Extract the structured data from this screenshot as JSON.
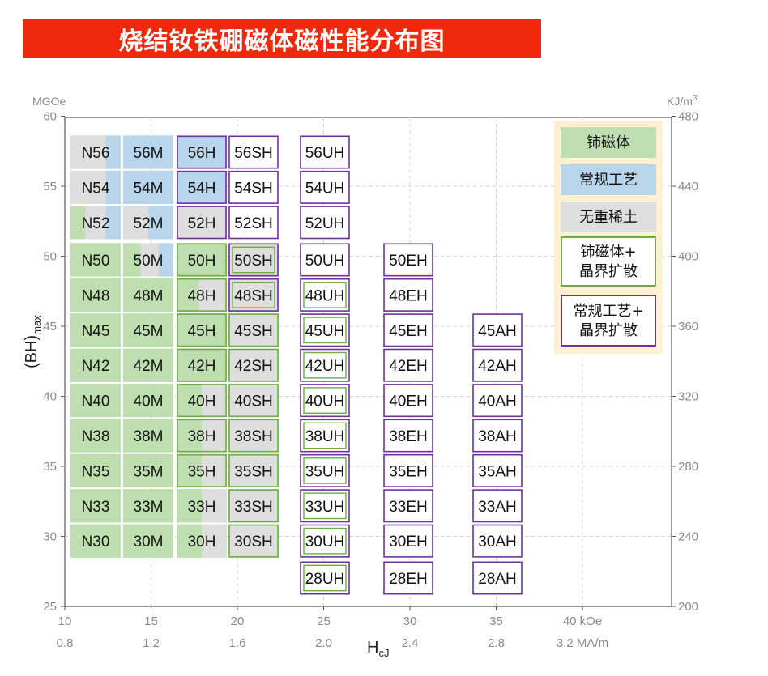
{
  "title": "烧结钕铁硼磁体磁性能分布图",
  "chart_data": {
    "type": "table",
    "xlabel_main": "H",
    "xlabel_sub": "cJ",
    "ylabel_main": "(BH)",
    "ylabel_sub": "max",
    "y_left_unit": "MGOe",
    "y_right_unit_base": "KJ/m",
    "y_right_unit_sup": "3",
    "ylim": [
      25,
      60
    ],
    "y_ticks_left": [
      25,
      30,
      35,
      40,
      45,
      50,
      55,
      60
    ],
    "y_ticks_right": [
      {
        "value": 25,
        "label": "200"
      },
      {
        "value": 30,
        "label": "240"
      },
      {
        "value": 35,
        "label": "280"
      },
      {
        "value": 40,
        "label": "320"
      },
      {
        "value": 45,
        "label": "360"
      },
      {
        "value": 50,
        "label": "400"
      },
      {
        "value": 55,
        "label": "440"
      },
      {
        "value": 60,
        "label": "480"
      }
    ],
    "xlim": [
      10,
      45
    ],
    "x_ticks_koe": [
      {
        "value": 10,
        "label": "10"
      },
      {
        "value": 15,
        "label": "15"
      },
      {
        "value": 20,
        "label": "20"
      },
      {
        "value": 25,
        "label": "25"
      },
      {
        "value": 30,
        "label": "30"
      },
      {
        "value": 35,
        "label": "35"
      },
      {
        "value": 40,
        "label": "40 kOe"
      }
    ],
    "x_ticks_ma": [
      {
        "value": 10,
        "label": "0.8"
      },
      {
        "value": 15,
        "label": "1.2"
      },
      {
        "value": 20,
        "label": "1.6"
      },
      {
        "value": 25,
        "label": "2.0"
      },
      {
        "value": 30,
        "label": "2.4"
      },
      {
        "value": 35,
        "label": "2.8"
      },
      {
        "value": 40,
        "label": "3.2 MA/m"
      }
    ],
    "grid": true,
    "legend_position": "top-right",
    "colors": {
      "green": "#bedeb0",
      "blue": "#b8d5ec",
      "gray": "#dedede",
      "green_border": "#6fac46",
      "purple_border": "#7030a0",
      "legend_bg": "#fdf1d2",
      "grid": "#d0d0d0"
    },
    "legend": [
      {
        "label": "铈磁体",
        "style": "green"
      },
      {
        "label": "常规工艺",
        "style": "blue"
      },
      {
        "label": "无重稀土",
        "style": "gray"
      },
      {
        "label": "铈磁体+\n晶界扩散",
        "style": "green-border"
      },
      {
        "label": "常规工艺+\n晶界扩散",
        "style": "purple-border"
      }
    ],
    "columns": [
      {
        "hcj": 12,
        "grades": [
          {
            "label": "N56",
            "bh": 56,
            "fill": [
              [
                "gray",
                0.7
              ],
              [
                "blue",
                0.3
              ]
            ]
          },
          {
            "label": "N54",
            "bh": 54,
            "fill": [
              [
                "gray",
                0.7
              ],
              [
                "blue",
                0.3
              ]
            ]
          },
          {
            "label": "N52",
            "bh": 52,
            "fill": [
              [
                "green",
                0.3
              ],
              [
                "gray",
                0.4
              ],
              [
                "blue",
                0.3
              ]
            ]
          },
          {
            "label": "N50",
            "bh": 50,
            "fill": [
              [
                "green",
                1
              ]
            ]
          },
          {
            "label": "N48",
            "bh": 48,
            "fill": [
              [
                "green",
                1
              ]
            ]
          },
          {
            "label": "N45",
            "bh": 45,
            "fill": [
              [
                "green",
                1
              ]
            ]
          },
          {
            "label": "N42",
            "bh": 42,
            "fill": [
              [
                "green",
                1
              ]
            ]
          },
          {
            "label": "N40",
            "bh": 40,
            "fill": [
              [
                "green",
                1
              ]
            ]
          },
          {
            "label": "N38",
            "bh": 38,
            "fill": [
              [
                "green",
                1
              ]
            ]
          },
          {
            "label": "N35",
            "bh": 35,
            "fill": [
              [
                "green",
                1
              ]
            ]
          },
          {
            "label": "N33",
            "bh": 33,
            "fill": [
              [
                "green",
                1
              ]
            ]
          },
          {
            "label": "N30",
            "bh": 30,
            "fill": [
              [
                "green",
                1
              ]
            ]
          }
        ]
      },
      {
        "hcj": 15,
        "grades": [
          {
            "label": "56M",
            "bh": 56,
            "fill": [
              [
                "blue",
                1
              ]
            ]
          },
          {
            "label": "54M",
            "bh": 54,
            "fill": [
              [
                "blue",
                1
              ]
            ]
          },
          {
            "label": "52M",
            "bh": 52,
            "fill": [
              [
                "gray",
                0.5
              ],
              [
                "blue",
                0.5
              ]
            ]
          },
          {
            "label": "50M",
            "bh": 50,
            "fill": [
              [
                "green",
                0.35
              ],
              [
                "gray",
                0.35
              ],
              [
                "blue",
                0.3
              ]
            ]
          },
          {
            "label": "48M",
            "bh": 48,
            "fill": [
              [
                "green",
                1
              ]
            ]
          },
          {
            "label": "45M",
            "bh": 45,
            "fill": [
              [
                "green",
                1
              ]
            ]
          },
          {
            "label": "42M",
            "bh": 42,
            "fill": [
              [
                "green",
                1
              ]
            ]
          },
          {
            "label": "40M",
            "bh": 40,
            "fill": [
              [
                "green",
                1
              ]
            ]
          },
          {
            "label": "38M",
            "bh": 38,
            "fill": [
              [
                "green",
                1
              ]
            ]
          },
          {
            "label": "35M",
            "bh": 35,
            "fill": [
              [
                "green",
                1
              ]
            ]
          },
          {
            "label": "33M",
            "bh": 33,
            "fill": [
              [
                "green",
                1
              ]
            ]
          },
          {
            "label": "30M",
            "bh": 30,
            "fill": [
              [
                "green",
                1
              ]
            ]
          }
        ]
      },
      {
        "hcj": 18,
        "grades": [
          {
            "label": "56H",
            "bh": 56,
            "fill": [
              [
                "blue",
                1
              ]
            ],
            "border": "purple"
          },
          {
            "label": "54H",
            "bh": 54,
            "fill": [
              [
                "blue",
                1
              ]
            ],
            "border": "purple"
          },
          {
            "label": "52H",
            "bh": 52,
            "fill": [
              [
                "gray",
                1
              ]
            ],
            "border": "purple"
          },
          {
            "label": "50H",
            "bh": 50,
            "fill": [
              [
                "green",
                1
              ]
            ],
            "border": "green"
          },
          {
            "label": "48H",
            "bh": 48,
            "fill": [
              [
                "green",
                0.45
              ],
              [
                "gray",
                0.55
              ]
            ],
            "border": "green"
          },
          {
            "label": "45H",
            "bh": 45,
            "fill": [
              [
                "green",
                1
              ]
            ],
            "border": "green"
          },
          {
            "label": "42H",
            "bh": 42,
            "fill": [
              [
                "green",
                1
              ]
            ],
            "border": "green"
          },
          {
            "label": "40H",
            "bh": 40,
            "fill": [
              [
                "green",
                0.5
              ],
              [
                "gray",
                0.5
              ]
            ],
            "border": "green"
          },
          {
            "label": "38H",
            "bh": 38,
            "fill": [
              [
                "green",
                0.5
              ],
              [
                "gray",
                0.5
              ]
            ],
            "border": "green"
          },
          {
            "label": "35H",
            "bh": 35,
            "fill": [
              [
                "green",
                0.5
              ],
              [
                "gray",
                0.5
              ]
            ],
            "border": "green"
          },
          {
            "label": "33H",
            "bh": 33,
            "fill": [
              [
                "green",
                0.5
              ],
              [
                "gray",
                0.5
              ]
            ]
          },
          {
            "label": "30H",
            "bh": 30,
            "fill": [
              [
                "green",
                0.5
              ],
              [
                "gray",
                0.5
              ]
            ]
          }
        ]
      },
      {
        "hcj": 21,
        "grades": [
          {
            "label": "56SH",
            "bh": 56,
            "border": "purple"
          },
          {
            "label": "54SH",
            "bh": 54,
            "border": "purple"
          },
          {
            "label": "52SH",
            "bh": 52,
            "border": "purple"
          },
          {
            "label": "50SH",
            "bh": 50,
            "fill": [
              [
                "gray",
                1
              ]
            ],
            "border": "purple",
            "inner": "green"
          },
          {
            "label": "48SH",
            "bh": 48,
            "fill": [
              [
                "gray",
                1
              ]
            ],
            "border": "purple",
            "inner": "green"
          },
          {
            "label": "45SH",
            "bh": 45,
            "fill": [
              [
                "gray",
                1
              ]
            ],
            "border": "green"
          },
          {
            "label": "42SH",
            "bh": 42,
            "fill": [
              [
                "gray",
                1
              ]
            ],
            "border": "green"
          },
          {
            "label": "40SH",
            "bh": 40,
            "fill": [
              [
                "gray",
                1
              ]
            ],
            "border": "green"
          },
          {
            "label": "38SH",
            "bh": 38,
            "fill": [
              [
                "gray",
                1
              ]
            ],
            "border": "green"
          },
          {
            "label": "35SH",
            "bh": 35,
            "fill": [
              [
                "gray",
                1
              ]
            ],
            "border": "green"
          },
          {
            "label": "33SH",
            "bh": 33,
            "fill": [
              [
                "gray",
                1
              ]
            ],
            "border": "green"
          },
          {
            "label": "30SH",
            "bh": 30,
            "fill": [
              [
                "gray",
                1
              ]
            ],
            "border": "green"
          }
        ]
      },
      {
        "hcj": 25,
        "grades": [
          {
            "label": "56UH",
            "bh": 56,
            "border": "purple"
          },
          {
            "label": "54UH",
            "bh": 54,
            "border": "purple"
          },
          {
            "label": "52UH",
            "bh": 52,
            "border": "purple"
          },
          {
            "label": "50UH",
            "bh": 50,
            "border": "purple"
          },
          {
            "label": "48UH",
            "bh": 48,
            "border": "purple",
            "inner": "green"
          },
          {
            "label": "45UH",
            "bh": 45,
            "border": "purple",
            "inner": "green"
          },
          {
            "label": "42UH",
            "bh": 42,
            "border": "purple",
            "inner": "green"
          },
          {
            "label": "40UH",
            "bh": 40,
            "border": "purple",
            "inner": "green"
          },
          {
            "label": "38UH",
            "bh": 38,
            "border": "purple",
            "inner": "green"
          },
          {
            "label": "35UH",
            "bh": 35,
            "border": "purple",
            "inner": "green"
          },
          {
            "label": "33UH",
            "bh": 33,
            "border": "purple",
            "inner": "green"
          },
          {
            "label": "30UH",
            "bh": 30,
            "border": "purple",
            "inner": "green"
          },
          {
            "label": "28UH",
            "bh": 28,
            "border": "purple",
            "inner": "green"
          }
        ]
      },
      {
        "hcj": 30,
        "grades": [
          {
            "label": "50EH",
            "bh": 50,
            "border": "purple"
          },
          {
            "label": "48EH",
            "bh": 48,
            "border": "purple"
          },
          {
            "label": "45EH",
            "bh": 45,
            "border": "purple"
          },
          {
            "label": "42EH",
            "bh": 42,
            "border": "purple"
          },
          {
            "label": "40EH",
            "bh": 40,
            "border": "purple"
          },
          {
            "label": "38EH",
            "bh": 38,
            "border": "purple"
          },
          {
            "label": "35EH",
            "bh": 35,
            "border": "purple"
          },
          {
            "label": "33EH",
            "bh": 33,
            "border": "purple"
          },
          {
            "label": "30EH",
            "bh": 30,
            "border": "purple"
          },
          {
            "label": "28EH",
            "bh": 28,
            "border": "purple"
          }
        ]
      },
      {
        "hcj": 35,
        "grades": [
          {
            "label": "45AH",
            "bh": 45,
            "border": "purple"
          },
          {
            "label": "42AH",
            "bh": 42,
            "border": "purple"
          },
          {
            "label": "40AH",
            "bh": 40,
            "border": "purple"
          },
          {
            "label": "38AH",
            "bh": 38,
            "border": "purple"
          },
          {
            "label": "35AH",
            "bh": 35,
            "border": "purple"
          },
          {
            "label": "33AH",
            "bh": 33,
            "border": "purple"
          },
          {
            "label": "30AH",
            "bh": 30,
            "border": "purple"
          },
          {
            "label": "28AH",
            "bh": 28,
            "border": "purple"
          }
        ]
      }
    ]
  }
}
